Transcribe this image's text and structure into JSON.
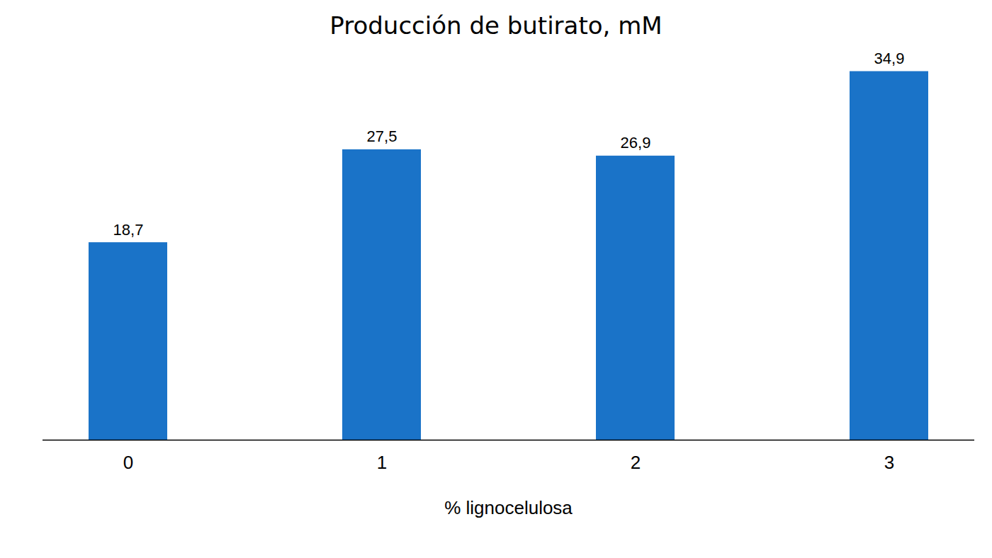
{
  "chart_data": {
    "type": "bar",
    "title": "Producción de butirato, mM",
    "x_label": "% lignocelulosa",
    "categories": [
      "0",
      "1",
      "2",
      "3"
    ],
    "values": [
      18.7,
      27.5,
      26.9,
      34.9
    ],
    "value_labels": [
      "18,7",
      "27,5",
      "26,9",
      "34,9"
    ],
    "color": "#1a73c8",
    "ylim": [
      0,
      35
    ],
    "data_labels": true,
    "tick_labels": "x",
    "grid": false
  }
}
